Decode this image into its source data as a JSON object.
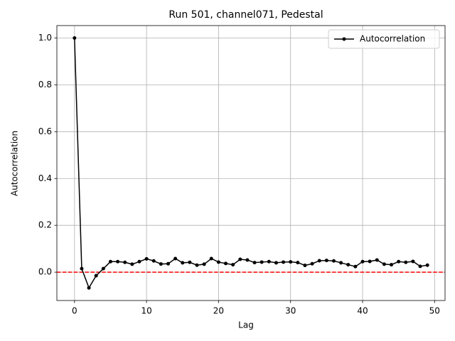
{
  "chart_data": {
    "type": "line",
    "title": "Run 501, channel071, Pedestal",
    "xlabel": "Lag",
    "ylabel": "Autocorrelation",
    "x": [
      0,
      1,
      2,
      3,
      4,
      5,
      6,
      7,
      8,
      9,
      10,
      11,
      12,
      13,
      14,
      15,
      16,
      17,
      18,
      19,
      20,
      21,
      22,
      23,
      24,
      25,
      26,
      27,
      28,
      29,
      30,
      31,
      32,
      33,
      34,
      35,
      36,
      37,
      38,
      39,
      40,
      41,
      42,
      43,
      44,
      45,
      46,
      47,
      48,
      49
    ],
    "series": [
      {
        "name": "Autocorrelation",
        "color": "#000000",
        "values": [
          1.0,
          0.015,
          -0.067,
          -0.015,
          0.015,
          0.045,
          0.045,
          0.042,
          0.034,
          0.045,
          0.057,
          0.048,
          0.035,
          0.036,
          0.058,
          0.04,
          0.042,
          0.03,
          0.034,
          0.058,
          0.043,
          0.037,
          0.032,
          0.055,
          0.052,
          0.041,
          0.043,
          0.045,
          0.04,
          0.043,
          0.044,
          0.041,
          0.029,
          0.036,
          0.049,
          0.05,
          0.048,
          0.04,
          0.032,
          0.024,
          0.045,
          0.046,
          0.052,
          0.034,
          0.032,
          0.045,
          0.042,
          0.046,
          0.025,
          0.03
        ]
      }
    ],
    "xlim": [
      -2.45,
      51.45
    ],
    "xticks": [
      0,
      10,
      20,
      30,
      40,
      50
    ],
    "ylim": [
      -0.121,
      1.053
    ],
    "yticks": [
      {
        "value": 0,
        "label": "0.0"
      },
      0.2,
      0.4,
      0.6,
      0.8,
      {
        "value": 1,
        "label": "1.0"
      }
    ],
    "grid": true,
    "legend": "upper right",
    "hline": {
      "value": 0,
      "color": "#ff0000"
    }
  }
}
